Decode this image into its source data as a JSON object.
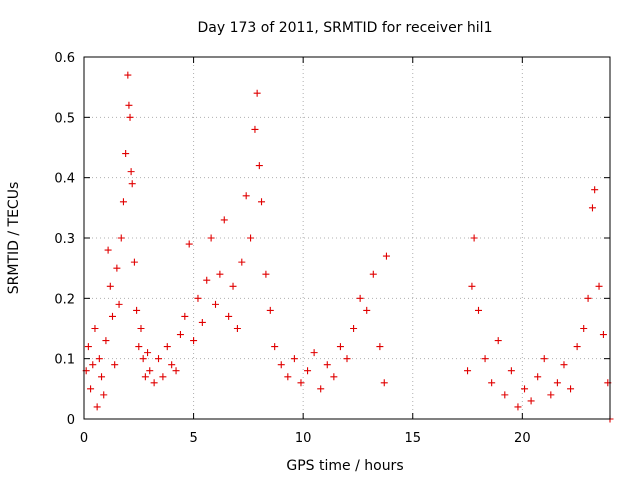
{
  "chart_data": {
    "type": "scatter",
    "title": "Day 173 of 2011, SRMTID for receiver hil1",
    "xlabel": "GPS time / hours",
    "ylabel": "SRMTID / TECUs",
    "xlim": [
      0,
      24
    ],
    "ylim": [
      0,
      0.6
    ],
    "x_ticks": [
      0,
      5,
      10,
      15,
      20
    ],
    "x_tick_labels": [
      "0",
      "5",
      "10",
      "15",
      "20"
    ],
    "y_ticks": [
      0,
      0.1,
      0.2,
      0.3,
      0.4,
      0.5,
      0.6
    ],
    "y_tick_labels": [
      "0",
      "0.1",
      "0.2",
      "0.3",
      "0.4",
      "0.5",
      "0.6"
    ],
    "grid": true,
    "marker": "+",
    "color": "#e00000",
    "series": [
      {
        "name": "SRMTID",
        "points": [
          [
            0.1,
            0.08
          ],
          [
            0.2,
            0.12
          ],
          [
            0.3,
            0.05
          ],
          [
            0.4,
            0.09
          ],
          [
            0.5,
            0.15
          ],
          [
            0.6,
            0.02
          ],
          [
            0.7,
            0.1
          ],
          [
            0.8,
            0.07
          ],
          [
            0.9,
            0.04
          ],
          [
            1.0,
            0.13
          ],
          [
            1.1,
            0.28
          ],
          [
            1.2,
            0.22
          ],
          [
            1.3,
            0.17
          ],
          [
            1.4,
            0.09
          ],
          [
            1.5,
            0.25
          ],
          [
            1.6,
            0.19
          ],
          [
            1.7,
            0.3
          ],
          [
            1.8,
            0.36
          ],
          [
            1.9,
            0.44
          ],
          [
            2.0,
            0.57
          ],
          [
            2.05,
            0.52
          ],
          [
            2.1,
            0.5
          ],
          [
            2.15,
            0.41
          ],
          [
            2.2,
            0.39
          ],
          [
            2.3,
            0.26
          ],
          [
            2.4,
            0.18
          ],
          [
            2.5,
            0.12
          ],
          [
            2.6,
            0.15
          ],
          [
            2.7,
            0.1
          ],
          [
            2.8,
            0.07
          ],
          [
            2.9,
            0.11
          ],
          [
            3.0,
            0.08
          ],
          [
            3.2,
            0.06
          ],
          [
            3.4,
            0.1
          ],
          [
            3.6,
            0.07
          ],
          [
            3.8,
            0.12
          ],
          [
            4.0,
            0.09
          ],
          [
            4.2,
            0.08
          ],
          [
            4.4,
            0.14
          ],
          [
            4.6,
            0.17
          ],
          [
            4.8,
            0.29
          ],
          [
            5.0,
            0.13
          ],
          [
            5.2,
            0.2
          ],
          [
            5.4,
            0.16
          ],
          [
            5.6,
            0.23
          ],
          [
            5.8,
            0.3
          ],
          [
            6.0,
            0.19
          ],
          [
            6.2,
            0.24
          ],
          [
            6.4,
            0.33
          ],
          [
            6.6,
            0.17
          ],
          [
            6.8,
            0.22
          ],
          [
            7.0,
            0.15
          ],
          [
            7.2,
            0.26
          ],
          [
            7.4,
            0.37
          ],
          [
            7.6,
            0.3
          ],
          [
            7.8,
            0.48
          ],
          [
            7.9,
            0.54
          ],
          [
            8.0,
            0.42
          ],
          [
            8.1,
            0.36
          ],
          [
            8.3,
            0.24
          ],
          [
            8.5,
            0.18
          ],
          [
            8.7,
            0.12
          ],
          [
            9.0,
            0.09
          ],
          [
            9.3,
            0.07
          ],
          [
            9.6,
            0.1
          ],
          [
            9.9,
            0.06
          ],
          [
            10.2,
            0.08
          ],
          [
            10.5,
            0.11
          ],
          [
            10.8,
            0.05
          ],
          [
            11.1,
            0.09
          ],
          [
            11.4,
            0.07
          ],
          [
            11.7,
            0.12
          ],
          [
            12.0,
            0.1
          ],
          [
            12.3,
            0.15
          ],
          [
            12.6,
            0.2
          ],
          [
            12.9,
            0.18
          ],
          [
            13.2,
            0.24
          ],
          [
            13.5,
            0.12
          ],
          [
            13.7,
            0.06
          ],
          [
            13.8,
            0.27
          ],
          [
            17.5,
            0.08
          ],
          [
            17.7,
            0.22
          ],
          [
            17.8,
            0.3
          ],
          [
            18.0,
            0.18
          ],
          [
            18.3,
            0.1
          ],
          [
            18.6,
            0.06
          ],
          [
            18.9,
            0.13
          ],
          [
            19.2,
            0.04
          ],
          [
            19.5,
            0.08
          ],
          [
            19.8,
            0.02
          ],
          [
            20.1,
            0.05
          ],
          [
            20.4,
            0.03
          ],
          [
            20.7,
            0.07
          ],
          [
            21.0,
            0.1
          ],
          [
            21.3,
            0.04
          ],
          [
            21.6,
            0.06
          ],
          [
            21.9,
            0.09
          ],
          [
            22.2,
            0.05
          ],
          [
            22.5,
            0.12
          ],
          [
            22.8,
            0.15
          ],
          [
            23.0,
            0.2
          ],
          [
            23.2,
            0.35
          ],
          [
            23.3,
            0.38
          ],
          [
            23.5,
            0.22
          ],
          [
            23.7,
            0.14
          ],
          [
            23.9,
            0.06
          ],
          [
            24.0,
            0.0
          ]
        ]
      }
    ]
  }
}
